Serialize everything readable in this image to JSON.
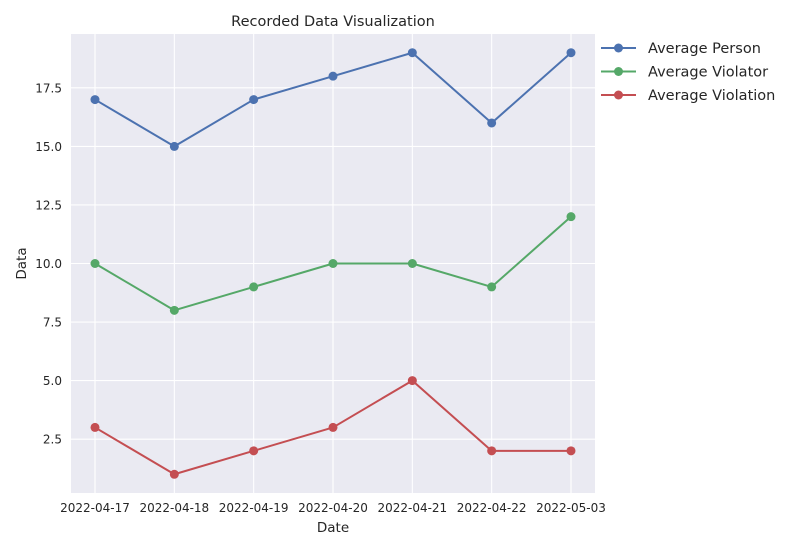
{
  "chart_data": {
    "type": "line",
    "title": "Recorded Data Visualization",
    "xlabel": "Date",
    "ylabel": "Data",
    "categories": [
      "2022-04-17",
      "2022-04-18",
      "2022-04-19",
      "2022-04-20",
      "2022-04-21",
      "2022-04-22",
      "2022-05-03"
    ],
    "ylim": [
      0.2,
      19.8
    ],
    "yticks": [
      2.5,
      5.0,
      7.5,
      10.0,
      12.5,
      15.0,
      17.5
    ],
    "ytick_labels": [
      "2.5",
      "5.0",
      "7.5",
      "10.0",
      "12.5",
      "15.0",
      "17.5"
    ],
    "grid": true,
    "legend_position": "outside-top-right",
    "series": [
      {
        "name": "Average Person",
        "color": "#4c72b0",
        "values": [
          17,
          15,
          17,
          18,
          19,
          16,
          19
        ]
      },
      {
        "name": "Average Violator",
        "color": "#55a868",
        "values": [
          10,
          8,
          9,
          10,
          10,
          9,
          12
        ]
      },
      {
        "name": "Average Violation",
        "color": "#c44e52",
        "values": [
          3,
          1,
          2,
          3,
          5,
          2,
          2
        ]
      }
    ]
  }
}
